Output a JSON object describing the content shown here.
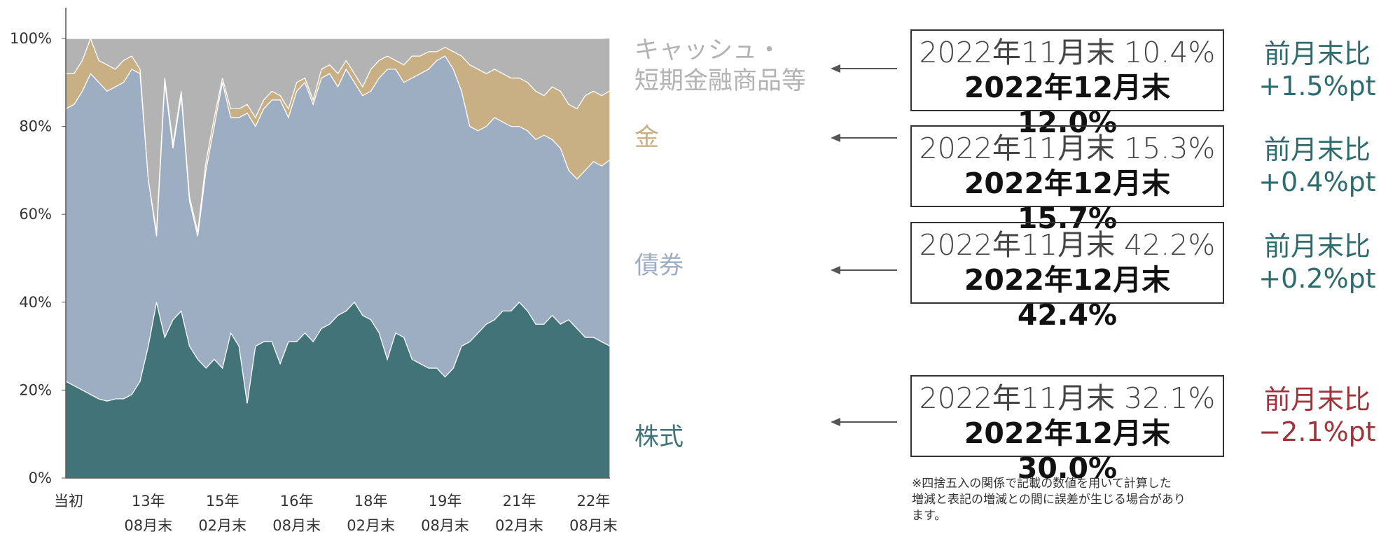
{
  "chart_data": {
    "type": "stacked_area",
    "categories": [
      [
        "当初"
      ],
      null,
      null,
      null,
      null,
      null,
      null,
      null,
      null,
      null,
      [
        "13年",
        "08月末"
      ],
      null,
      null,
      null,
      null,
      null,
      null,
      null,
      null,
      [
        "15年",
        "02月末"
      ],
      null,
      null,
      null,
      null,
      null,
      null,
      null,
      null,
      [
        "16年",
        "08月末"
      ],
      null,
      null,
      null,
      null,
      null,
      null,
      null,
      null,
      [
        "18年",
        "02月末"
      ],
      null,
      null,
      null,
      null,
      null,
      null,
      null,
      null,
      [
        "19年",
        "08月末"
      ],
      null,
      null,
      null,
      null,
      null,
      null,
      null,
      null,
      [
        "21年",
        "02月末"
      ],
      null,
      null,
      null,
      null,
      null,
      null,
      null,
      null,
      [
        "22年",
        "08月末"
      ],
      null,
      null
    ],
    "series": [
      {
        "name": "株式",
        "color": "#417379",
        "values": [
          22,
          21,
          20,
          19,
          18,
          17.5,
          18,
          18,
          19,
          22,
          30,
          40,
          32,
          36,
          38,
          30,
          27,
          25,
          27,
          25,
          33,
          30,
          17,
          30,
          31,
          31,
          26,
          31,
          31,
          33,
          31,
          34,
          35,
          37,
          38,
          40,
          37,
          36,
          33,
          27,
          33,
          32,
          27,
          26,
          25,
          25,
          23,
          25,
          30,
          31,
          33,
          35,
          36,
          38,
          38,
          40,
          38,
          35,
          35,
          37,
          35,
          36,
          34,
          32,
          32,
          31,
          30.0
        ]
      },
      {
        "name": "債券",
        "color": "#9dadc2",
        "values": [
          62,
          64,
          68,
          73,
          72,
          70.5,
          71,
          72,
          74,
          70,
          38,
          15,
          58,
          39,
          49,
          33,
          28,
          45,
          53,
          65,
          49,
          52,
          66,
          50,
          53,
          55,
          60,
          51,
          57,
          57,
          54,
          57,
          57,
          52,
          55,
          50,
          50,
          52,
          58,
          66,
          60,
          58,
          64,
          66,
          68,
          70,
          73,
          68,
          58,
          49,
          46,
          45,
          46,
          43,
          42,
          40,
          41,
          42,
          43,
          40,
          40,
          34,
          34,
          38,
          40,
          40,
          42.4
        ]
      },
      {
        "name": "金",
        "color": "#c9b084",
        "values": [
          8,
          7,
          7,
          8,
          5,
          6,
          4,
          5,
          3,
          1,
          0,
          1,
          1,
          1,
          1,
          1,
          1,
          2,
          2,
          1,
          2,
          2,
          2,
          2,
          2,
          2,
          1,
          2,
          2,
          1,
          1,
          2,
          2,
          3,
          2,
          2,
          2,
          5,
          4,
          3,
          2,
          4,
          5,
          4,
          4,
          2,
          2,
          4,
          8,
          14,
          14,
          12,
          11,
          11,
          11,
          11,
          11,
          11,
          9,
          12,
          13,
          15,
          16,
          17,
          16,
          16,
          15.7
        ]
      },
      {
        "name": "キャッシュ・\n短期金融商品等",
        "color": "#b3b3b3",
        "values": [
          8,
          8,
          5,
          0,
          5,
          6,
          7,
          5,
          4,
          7,
          32,
          44,
          9,
          24,
          12,
          36,
          44,
          28,
          18,
          9,
          16,
          16,
          15,
          18,
          14,
          12,
          13,
          16,
          10,
          9,
          14,
          7,
          6,
          8,
          5,
          8,
          11,
          7,
          5,
          4,
          5,
          6,
          4,
          4,
          3,
          3,
          2,
          3,
          4,
          6,
          7,
          8,
          7,
          8,
          9,
          9,
          10,
          12,
          13,
          11,
          12,
          15,
          16,
          13,
          12,
          13,
          12.0
        ]
      }
    ],
    "ylim": [
      0,
      107
    ],
    "yticks": [
      {
        "value": 0,
        "label": "0%"
      },
      {
        "value": 20,
        "label": "20%"
      },
      {
        "value": 40,
        "label": "40%"
      },
      {
        "value": 60,
        "label": "60%"
      },
      {
        "value": 80,
        "label": "80%"
      },
      {
        "value": 100,
        "label": "100%"
      }
    ],
    "annotations": [
      {
        "lines": [
          "2022年11月末 10.4%",
          "2022年12月末 12.0%"
        ],
        "change_label": "前月末比",
        "change": "+1.5%pt",
        "change_color": "#2e6b6e"
      },
      {
        "lines": [
          "2022年11月末 15.3%",
          "2022年12月末 15.7%"
        ],
        "change_label": "前月末比",
        "change": "+0.4%pt",
        "change_color": "#2e6b6e"
      },
      {
        "lines": [
          "2022年11月末 42.2%",
          "2022年12月末 42.4%"
        ],
        "change_label": "前月末比",
        "change": "+0.2%pt",
        "change_color": "#2e6b6e"
      },
      {
        "lines": [
          "2022年11月末 32.1%",
          "2022年12月末 30.0%"
        ],
        "change_label": "前月末比",
        "change": "−2.1%pt",
        "change_color": "#a0323a"
      }
    ],
    "footnote": [
      "※四捨五入の関係で記載の数値を用いて計算した",
      "増減と表記の増減との間に誤差が生じる場合があり",
      "ます。"
    ]
  }
}
